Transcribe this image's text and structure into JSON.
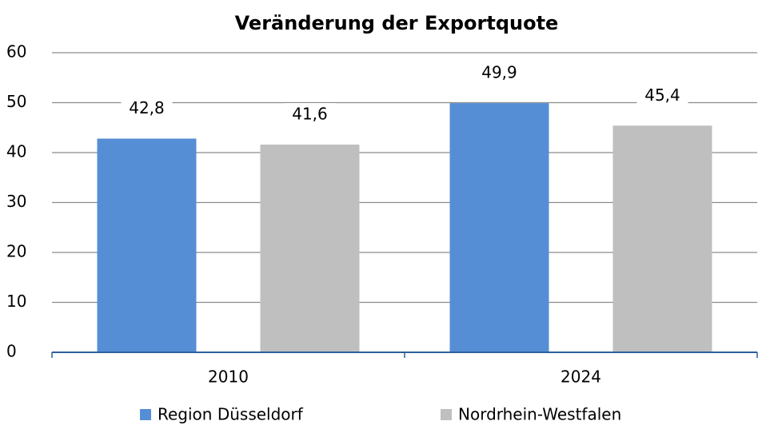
{
  "chart_data": {
    "type": "bar",
    "title": "Veränderung der Exportquote",
    "categories": [
      "2010",
      "2024"
    ],
    "series": [
      {
        "name": "Region Düsseldorf",
        "color": "#558ed5",
        "values": [
          42.8,
          49.9
        ],
        "value_labels": [
          "42,8",
          "49,9"
        ]
      },
      {
        "name": "Nordrhein-Westfalen",
        "color": "#bfbfbf",
        "values": [
          41.6,
          45.4
        ],
        "value_labels": [
          "41,6",
          "45,4"
        ]
      }
    ],
    "ylim": [
      0,
      60
    ],
    "yticks": [
      0,
      10,
      20,
      30,
      40,
      50,
      60
    ],
    "grid": true,
    "legend": "bottom"
  }
}
